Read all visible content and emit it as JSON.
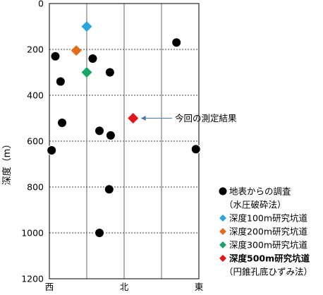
{
  "chart_data": {
    "type": "scatter",
    "title": "",
    "ylabel": "深度（m）",
    "ylim": [
      0,
      1200
    ],
    "yticks": [
      0,
      200,
      400,
      600,
      800,
      1000,
      1200
    ],
    "xlim": [
      -1,
      1
    ],
    "xticks": [
      {
        "value": -1,
        "label": "西"
      },
      {
        "value": 0,
        "label": "北"
      },
      {
        "value": 1,
        "label": "東"
      }
    ],
    "grid": "dashed-horizontal, solid-vertical",
    "legend_position": "bottom-right",
    "series": [
      {
        "name": "地表からの調査",
        "marker": "circle",
        "color": "#000000",
        "points": [
          {
            "x": -0.92,
            "y": 230
          },
          {
            "x": -0.85,
            "y": 340
          },
          {
            "x": -0.83,
            "y": 520
          },
          {
            "x": -0.97,
            "y": 640
          },
          {
            "x": -0.42,
            "y": 240
          },
          {
            "x": -0.19,
            "y": 300
          },
          {
            "x": -0.33,
            "y": 555
          },
          {
            "x": -0.18,
            "y": 575
          },
          {
            "x": -0.2,
            "y": 810
          },
          {
            "x": -0.33,
            "y": 1000
          },
          {
            "x": 0.7,
            "y": 170
          },
          {
            "x": 0.96,
            "y": 635
          }
        ]
      },
      {
        "name": "深度100m研究坑道",
        "marker": "diamond",
        "color": "#2aa5dd",
        "points": [
          {
            "x": -0.5,
            "y": 100
          }
        ]
      },
      {
        "name": "深度200m研究坑道",
        "marker": "diamond",
        "color": "#e26d1c",
        "points": [
          {
            "x": -0.64,
            "y": 205
          }
        ]
      },
      {
        "name": "深度300m研究坑道",
        "marker": "diamond",
        "color": "#1aa56a",
        "points": [
          {
            "x": -0.5,
            "y": 300
          }
        ]
      },
      {
        "name": "深度500m研究坑道",
        "marker": "diamond",
        "color": "#e3141c",
        "points": [
          {
            "x": 0.12,
            "y": 500
          }
        ]
      }
    ],
    "legend": [
      {
        "marker": "circle",
        "color": "#000000",
        "label": "地表からの調査",
        "bold": false
      },
      {
        "marker": "none",
        "color": "",
        "label": "（水圧破砕法）",
        "bold": false
      },
      {
        "marker": "diamond",
        "color": "#2aa5dd",
        "label": "深度100m研究坑道",
        "bold": false
      },
      {
        "marker": "diamond",
        "color": "#e26d1c",
        "label": "深度200m研究坑道",
        "bold": false
      },
      {
        "marker": "diamond",
        "color": "#1aa56a",
        "label": "深度300m研究坑道",
        "bold": false
      },
      {
        "marker": "diamond",
        "color": "#e3141c",
        "label": "深度500m研究坑道",
        "bold": true
      },
      {
        "marker": "none",
        "color": "",
        "label": "（円錐孔底ひずみ法）",
        "bold": false
      }
    ],
    "annotation": {
      "text": "今回の測定結果",
      "arrow_to": {
        "x": 0.12,
        "y": 500
      }
    }
  }
}
